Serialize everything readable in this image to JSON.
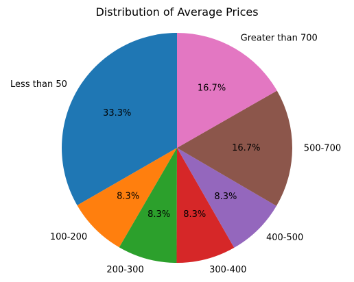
{
  "chart_data": {
    "type": "pie",
    "title": "Distribution of Average Prices",
    "categories": [
      "Less than 50",
      "100-200",
      "200-300",
      "300-400",
      "400-500",
      "500-700",
      "Greater than 700"
    ],
    "values": [
      33.3,
      8.3,
      8.3,
      8.3,
      8.3,
      16.7,
      16.7
    ],
    "value_labels": [
      "33.3%",
      "8.3%",
      "8.3%",
      "8.3%",
      "8.3%",
      "16.7%",
      "16.7%"
    ],
    "colors": [
      "#1f77b4",
      "#ff7f0e",
      "#2ca02c",
      "#d62728",
      "#9467bd",
      "#8c564b",
      "#e377c2"
    ],
    "start_angle_deg": 90,
    "direction": "counterclockwise"
  }
}
